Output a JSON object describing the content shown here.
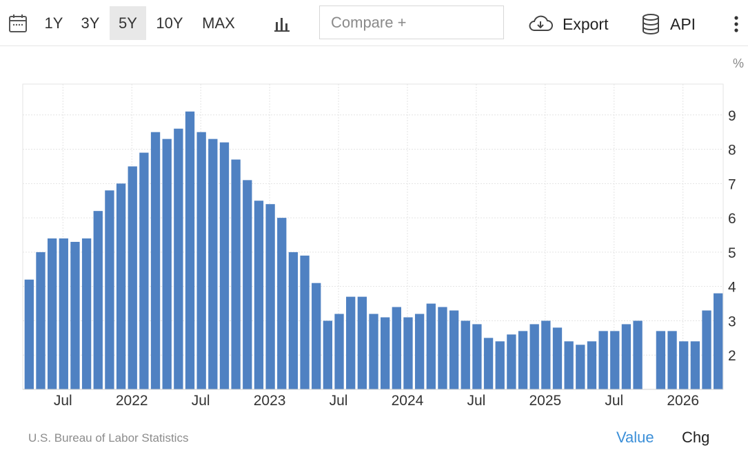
{
  "toolbar": {
    "periods": [
      "1Y",
      "3Y",
      "5Y",
      "10Y",
      "MAX"
    ],
    "active_period": "5Y",
    "compare_placeholder": "Compare +",
    "export_label": "Export",
    "api_label": "API",
    "icons": [
      "calendar-icon",
      "bar-chart-icon",
      "cloud-download-icon",
      "database-icon",
      "more-vertical-icon"
    ]
  },
  "footer": {
    "source": "U.S. Bureau of Labor Statistics",
    "value_tab": "Value",
    "chg_tab": "Chg"
  },
  "colors": {
    "bar": "#4f81c2",
    "accent": "#3b8fd8",
    "grid": "#e3e3e3"
  },
  "chart_data": {
    "type": "bar",
    "unit_label": "%",
    "y_ticks": [
      2,
      3,
      4,
      5,
      6,
      7,
      8,
      9
    ],
    "ylim": [
      1,
      9.9
    ],
    "x_tick_labels": [
      "Jul",
      "2022",
      "Jul",
      "2023",
      "Jul",
      "2024",
      "Jul",
      "2025",
      "Jul",
      "2026"
    ],
    "grid": true,
    "series": [
      {
        "values": [
          4.2,
          5.0,
          5.4,
          5.4,
          5.3,
          5.4,
          6.2,
          6.8,
          7.0,
          7.5,
          7.9,
          8.5,
          8.3,
          8.6,
          9.1,
          8.5,
          8.3,
          8.2,
          7.7,
          7.1,
          6.5,
          6.4,
          6.0,
          5.0,
          4.9,
          4.1,
          3.0,
          3.2,
          3.7,
          3.7,
          3.2,
          3.1,
          3.4,
          3.1,
          3.2,
          3.5,
          3.4,
          3.3,
          3.0,
          2.9,
          2.5,
          2.4,
          2.6,
          2.7,
          2.9,
          3.0,
          2.8,
          2.4,
          2.3,
          2.4,
          2.7,
          2.7,
          2.9,
          3.0,
          null,
          2.7,
          2.7,
          2.4,
          2.4,
          3.3,
          3.8
        ]
      }
    ]
  }
}
